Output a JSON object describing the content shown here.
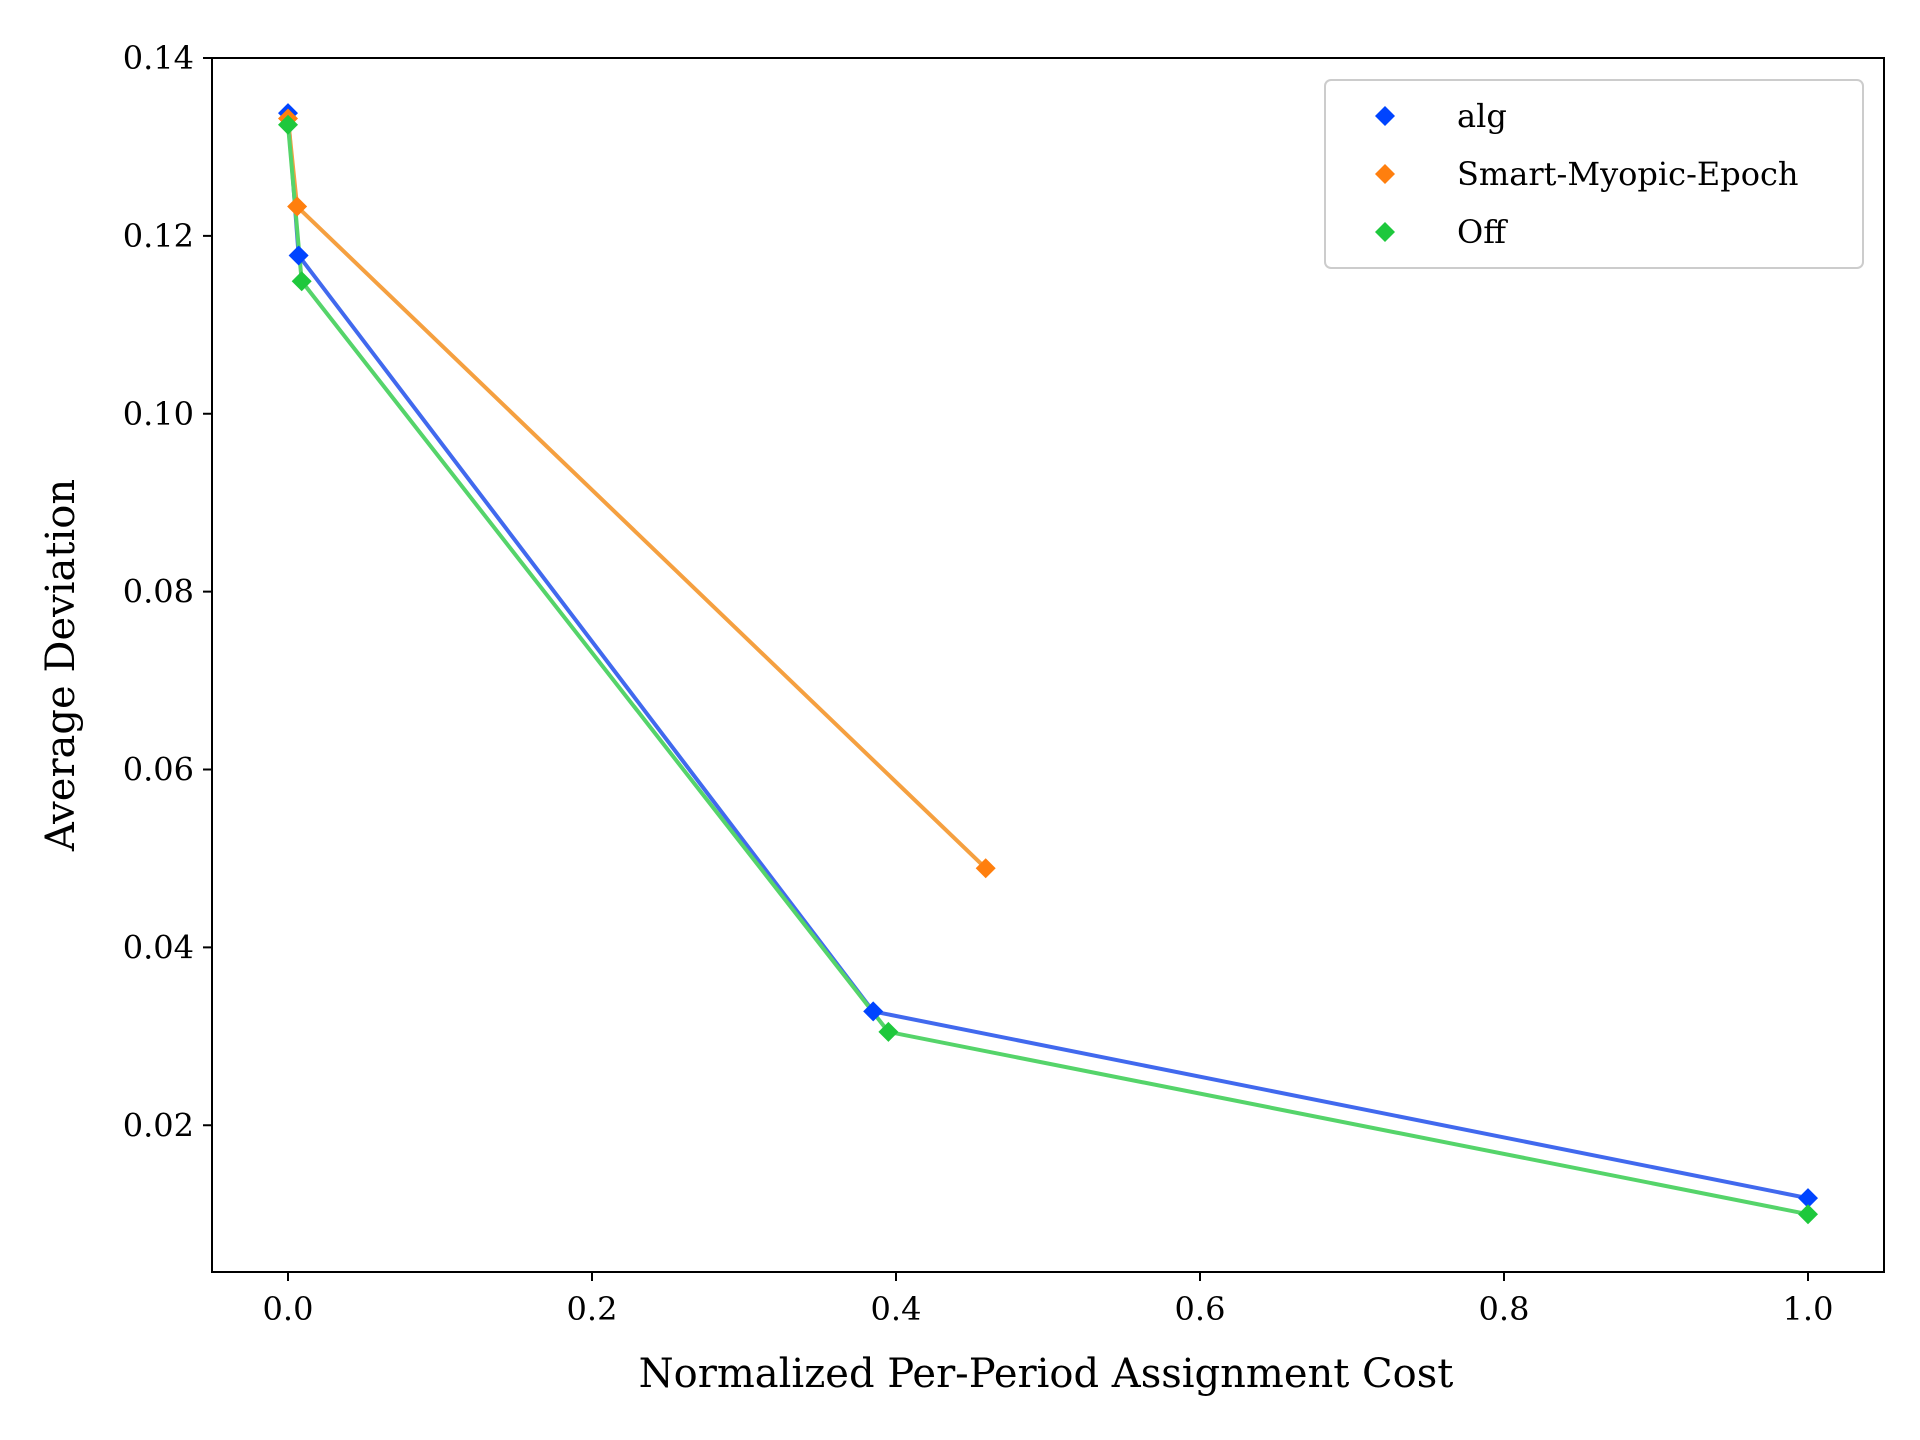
{
  "chart_data": {
    "type": "line",
    "title": "",
    "xlabel": "Normalized Per-Period Assignment Cost",
    "ylabel": "Average Deviation",
    "xlim": [
      -0.05,
      1.05
    ],
    "ylim": [
      0.0035,
      0.14
    ],
    "xticks": [
      0.0,
      0.2,
      0.4,
      0.6,
      0.8,
      1.0
    ],
    "xtick_labels": [
      "0.0",
      "0.2",
      "0.4",
      "0.6",
      "0.8",
      "1.0"
    ],
    "yticks": [
      0.02,
      0.04,
      0.06,
      0.08,
      0.1,
      0.12,
      0.14
    ],
    "ytick_labels": [
      "0.02",
      "0.04",
      "0.06",
      "0.08",
      "0.10",
      "0.12",
      "0.14"
    ],
    "grid": false,
    "legend_position": "top-right",
    "series": [
      {
        "name": "alg",
        "color": "#0044ff",
        "line_color": "#4169ee",
        "marker": "diamond",
        "x": [
          0.0,
          0.007,
          0.385,
          1.0
        ],
        "y": [
          0.1338,
          0.1178,
          0.0328,
          0.0118
        ]
      },
      {
        "name": "Smart-Myopic-Epoch",
        "color": "#ff7f0e",
        "line_color": "#f5a040",
        "marker": "diamond",
        "x": [
          0.0,
          0.006,
          0.459
        ],
        "y": [
          0.1332,
          0.1233,
          0.0489
        ]
      },
      {
        "name": "Off",
        "color": "#1ec83c",
        "line_color": "#55d46a",
        "marker": "diamond",
        "x": [
          0.0,
          0.009,
          0.395,
          1.0
        ],
        "y": [
          0.1325,
          0.1149,
          0.0305,
          0.01
        ]
      }
    ]
  }
}
